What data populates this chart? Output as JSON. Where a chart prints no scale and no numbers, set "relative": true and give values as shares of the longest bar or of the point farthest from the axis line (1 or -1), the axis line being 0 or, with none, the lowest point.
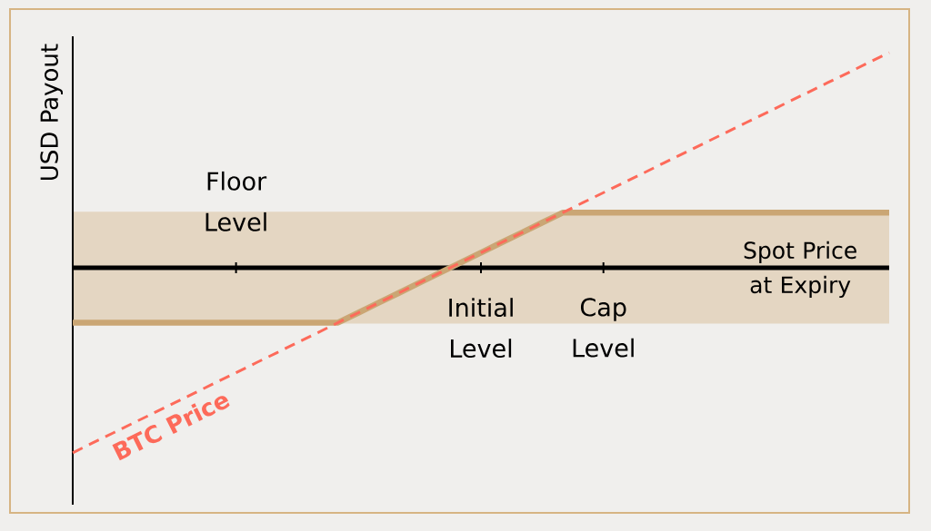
{
  "chart_data": {
    "type": "line",
    "relative": true,
    "marker": "none",
    "xlabel": "Spot Price at Expiry",
    "ylabel": "USD Payout",
    "categories": [
      null,
      null,
      null,
      null,
      null,
      null,
      null,
      null,
      "Floor Level",
      null,
      null,
      null,
      null,
      null,
      null,
      null,
      null,
      null,
      null,
      null,
      "Initial Level",
      null,
      null,
      null,
      null,
      null,
      "Cap Level",
      null,
      null,
      null,
      null,
      null,
      null,
      null,
      null,
      null,
      null,
      null,
      null,
      null,
      null
    ],
    "bands": [
      {
        "axis": "y",
        "from": -0.26,
        "to": 0.26,
        "color": "#e4d6c2"
      }
    ],
    "series": [
      {
        "color": "#caa674",
        "line_style": "solid",
        "values": [
          -0.255,
          -0.255,
          -0.255,
          -0.255,
          -0.255,
          -0.255,
          -0.255,
          -0.255,
          -0.255,
          -0.255,
          -0.255,
          -0.255,
          -0.255,
          -0.255,
          -0.209,
          -0.162,
          -0.116,
          -0.069,
          -0.023,
          0.024,
          0.07,
          0.117,
          0.163,
          0.21,
          0.256,
          0.256,
          0.256,
          0.256,
          0.256,
          0.256,
          0.256,
          0.256,
          0.256,
          0.256,
          0.256,
          0.256,
          0.256,
          0.256,
          0.256,
          0.256,
          0.256
        ]
      },
      {
        "name": "BTC Price",
        "color": "#fd6a5a",
        "line_style": "dashed",
        "values": [
          -0.86,
          -0.813,
          -0.767,
          -0.72,
          -0.674,
          -0.627,
          -0.581,
          -0.534,
          -0.488,
          -0.441,
          -0.395,
          -0.348,
          -0.302,
          -0.255,
          -0.209,
          -0.162,
          -0.116,
          -0.069,
          -0.023,
          0.024,
          0.07,
          0.117,
          0.163,
          0.21,
          0.256,
          0.303,
          0.349,
          0.396,
          0.442,
          0.489,
          0.535,
          0.582,
          0.628,
          0.675,
          0.721,
          0.768,
          0.814,
          0.861,
          0.907,
          0.954,
          1.0
        ]
      }
    ]
  }
}
